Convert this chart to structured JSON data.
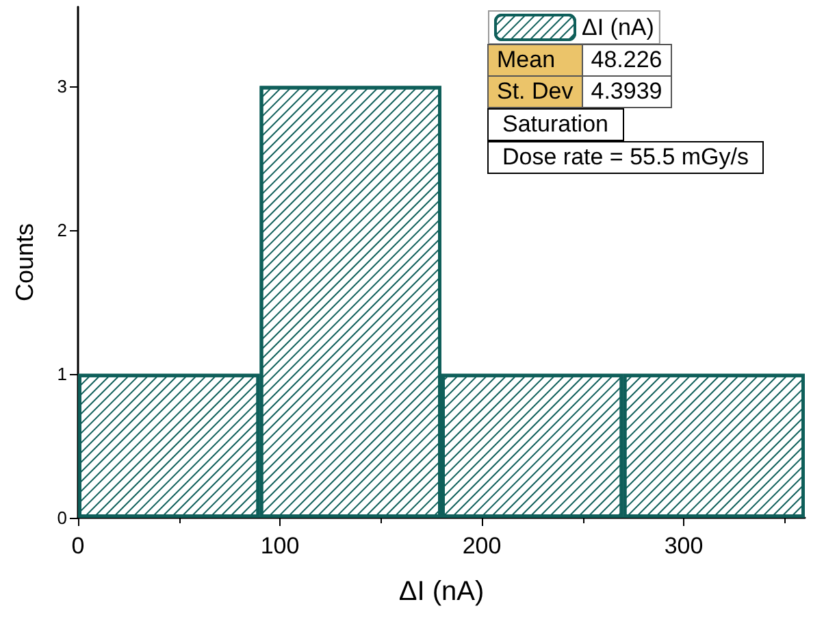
{
  "chart_data": {
    "type": "histogram",
    "xlabel": "ΔI (nA)",
    "ylabel": "Counts",
    "bins": [
      0,
      90,
      180,
      270,
      360
    ],
    "series": [
      {
        "name": "ΔI (nA)",
        "color": "#0f5f5a",
        "values": [
          1,
          3,
          1,
          1
        ]
      }
    ],
    "xlim": [
      0,
      360
    ],
    "xticks": [
      0,
      100,
      200,
      300
    ],
    "ylim": [
      0,
      3.55
    ],
    "yticks": [
      0,
      1,
      2,
      3
    ],
    "grid": false,
    "legend": "top right",
    "annotations": [
      "Mean",
      "48.226",
      "St. Dev",
      "4.3939",
      "Saturation",
      "Dose rate = 55.5 mGy/s"
    ]
  }
}
